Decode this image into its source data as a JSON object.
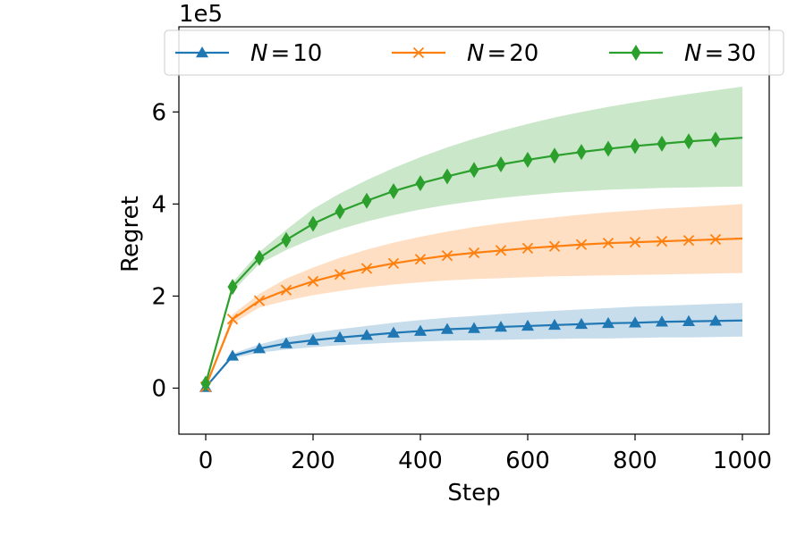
{
  "chart_data": {
    "type": "line",
    "xlabel": "Step",
    "ylabel": "Regret",
    "y_offset_label": "1e5",
    "xlim": [
      -50,
      1050
    ],
    "ylim": [
      -1.0,
      7.85
    ],
    "x_ticks": [
      0,
      200,
      400,
      600,
      800,
      1000
    ],
    "x_tick_labels": [
      "0",
      "200",
      "400",
      "600",
      "800",
      "1000"
    ],
    "y_ticks": [
      0,
      2,
      4,
      6
    ],
    "y_tick_labels": [
      "0",
      "2",
      "4",
      "6"
    ],
    "grid": false,
    "legend": {
      "position": "top",
      "columns": 3
    },
    "series": [
      {
        "name": "N = 10",
        "label_parts": [
          "N",
          "=",
          "10"
        ],
        "color": "#1f77b4",
        "marker": "triangle",
        "x": [
          0,
          50,
          100,
          150,
          200,
          250,
          300,
          350,
          400,
          450,
          500,
          550,
          600,
          650,
          700,
          750,
          800,
          850,
          900,
          950,
          1000
        ],
        "y": [
          0.02,
          0.7,
          0.86,
          0.97,
          1.04,
          1.1,
          1.15,
          1.2,
          1.24,
          1.28,
          1.3,
          1.33,
          1.35,
          1.37,
          1.39,
          1.41,
          1.42,
          1.44,
          1.45,
          1.46,
          1.47
        ],
        "lower": [
          0.02,
          0.65,
          0.77,
          0.84,
          0.89,
          0.93,
          0.96,
          0.99,
          1.01,
          1.03,
          1.04,
          1.05,
          1.06,
          1.07,
          1.08,
          1.08,
          1.09,
          1.1,
          1.1,
          1.11,
          1.12
        ],
        "upper": [
          0.02,
          0.75,
          0.95,
          1.1,
          1.2,
          1.28,
          1.35,
          1.42,
          1.48,
          1.53,
          1.57,
          1.61,
          1.65,
          1.68,
          1.71,
          1.74,
          1.77,
          1.79,
          1.81,
          1.83,
          1.85
        ]
      },
      {
        "name": "N = 20",
        "label_parts": [
          "N",
          "=",
          "20"
        ],
        "color": "#ff7f0e",
        "marker": "x",
        "x": [
          0,
          50,
          100,
          150,
          200,
          250,
          300,
          350,
          400,
          450,
          500,
          550,
          600,
          650,
          700,
          750,
          800,
          850,
          900,
          950,
          1000
        ],
        "y": [
          0.03,
          1.5,
          1.9,
          2.13,
          2.32,
          2.47,
          2.6,
          2.71,
          2.8,
          2.88,
          2.94,
          2.99,
          3.04,
          3.08,
          3.12,
          3.15,
          3.17,
          3.19,
          3.21,
          3.23,
          3.25
        ],
        "lower": [
          0.03,
          1.4,
          1.75,
          1.9,
          2.02,
          2.11,
          2.19,
          2.25,
          2.3,
          2.34,
          2.37,
          2.39,
          2.41,
          2.43,
          2.44,
          2.45,
          2.46,
          2.47,
          2.48,
          2.49,
          2.5
        ],
        "upper": [
          0.03,
          1.6,
          2.05,
          2.38,
          2.62,
          2.83,
          3.01,
          3.16,
          3.29,
          3.4,
          3.5,
          3.58,
          3.65,
          3.71,
          3.77,
          3.82,
          3.86,
          3.9,
          3.93,
          3.96,
          4.0
        ]
      },
      {
        "name": "N = 30",
        "label_parts": [
          "N",
          "=",
          "30"
        ],
        "color": "#2ca02c",
        "marker": "diamond",
        "x": [
          0,
          50,
          100,
          150,
          200,
          250,
          300,
          350,
          400,
          450,
          500,
          550,
          600,
          650,
          700,
          750,
          800,
          850,
          900,
          950,
          1000
        ],
        "y": [
          0.1,
          2.2,
          2.83,
          3.22,
          3.57,
          3.84,
          4.07,
          4.28,
          4.45,
          4.6,
          4.74,
          4.86,
          4.96,
          5.05,
          5.13,
          5.2,
          5.26,
          5.31,
          5.36,
          5.4,
          5.44
        ],
        "lower": [
          0.1,
          2.1,
          2.7,
          3.0,
          3.25,
          3.45,
          3.62,
          3.76,
          3.88,
          3.98,
          4.06,
          4.13,
          4.19,
          4.24,
          4.28,
          4.31,
          4.33,
          4.35,
          4.36,
          4.37,
          4.38
        ],
        "upper": [
          0.1,
          2.3,
          2.96,
          3.44,
          3.89,
          4.23,
          4.52,
          4.78,
          5.02,
          5.23,
          5.42,
          5.59,
          5.74,
          5.88,
          6.0,
          6.11,
          6.21,
          6.3,
          6.39,
          6.47,
          6.55
        ]
      }
    ]
  }
}
